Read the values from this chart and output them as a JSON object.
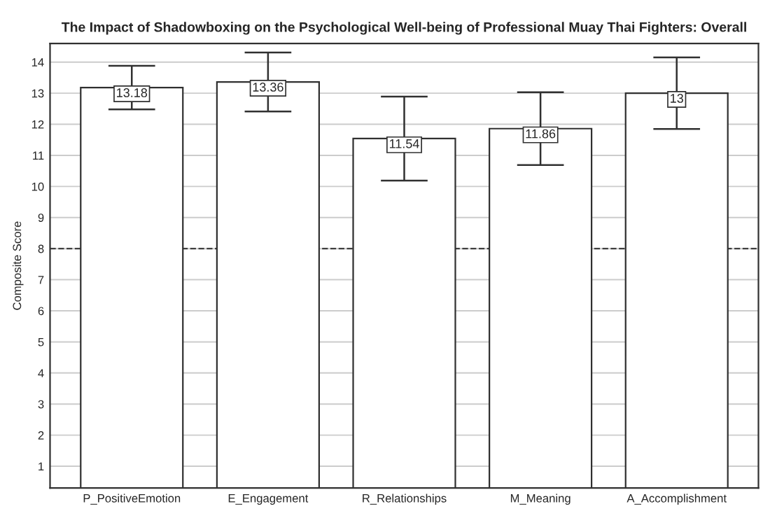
{
  "chart_data": {
    "type": "bar",
    "title": "The Impact of Shadowboxing on the Psychological Well-being of Professional Muay Thai Fighters: Overall",
    "ylabel": "Composite Score",
    "categories": [
      "P_PositiveEmotion",
      "E_Engagement",
      "R_Relationships",
      "M_Meaning",
      "A_Accomplishment"
    ],
    "values": [
      13.18,
      13.36,
      11.54,
      11.86,
      13
    ],
    "value_labels": [
      "13.18",
      "13.36",
      "11.54",
      "11.86",
      "13"
    ],
    "errors": [
      0.7,
      0.95,
      1.35,
      1.17,
      1.15
    ],
    "color": "#ffffff",
    "ylim": [
      0.3,
      14.6
    ],
    "yticks": [
      1,
      2,
      3,
      4,
      5,
      6,
      7,
      8,
      9,
      10,
      11,
      12,
      13,
      14
    ],
    "grid": "y",
    "ref_lines": [
      {
        "axis": "y",
        "value": 8,
        "color": "#404040",
        "line_style": "dashed"
      }
    ]
  }
}
